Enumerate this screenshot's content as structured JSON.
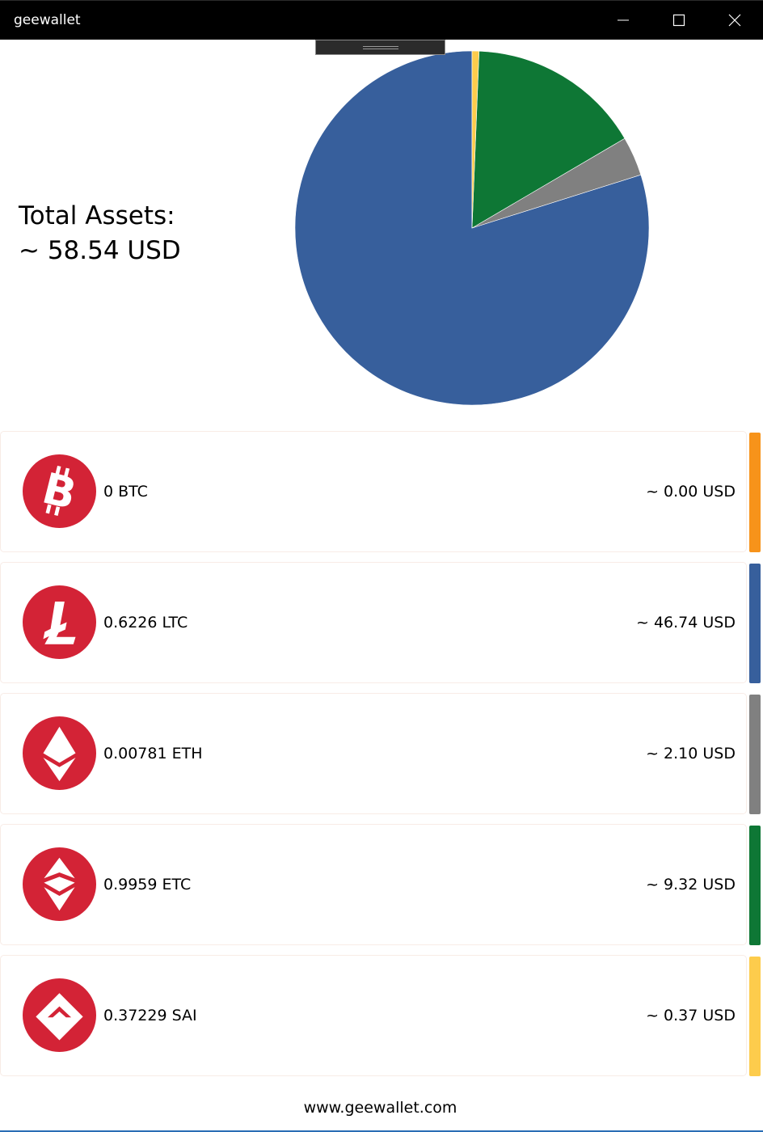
{
  "window": {
    "title": "geewallet",
    "controls": {
      "minimize_icon": "minimize-icon",
      "maximize_icon": "maximize-icon",
      "close_icon": "close-icon"
    }
  },
  "summary": {
    "label": "Total Assets:",
    "value": "~ 58.54 USD"
  },
  "chart_data": {
    "type": "pie",
    "slices": [
      {
        "name": "LTC",
        "value": 46.74,
        "color": "#375f9c"
      },
      {
        "name": "ETH",
        "value": 2.1,
        "color": "#808080"
      },
      {
        "name": "ETC",
        "value": 9.32,
        "color": "#0e7735"
      },
      {
        "name": "SAI",
        "value": 0.37,
        "color": "#fdcc4c"
      }
    ]
  },
  "accounts": [
    {
      "currency": "BTC",
      "amount": "0 BTC",
      "value": "~ 0.00 USD",
      "color": "#f7931a",
      "icon": "bitcoin-icon"
    },
    {
      "currency": "LTC",
      "amount": "0.6226 LTC",
      "value": "~ 46.74 USD",
      "color": "#375f9c",
      "icon": "litecoin-icon"
    },
    {
      "currency": "ETH",
      "amount": "0.00781 ETH",
      "value": "~ 2.10 USD",
      "color": "#808080",
      "icon": "ethereum-icon"
    },
    {
      "currency": "ETC",
      "amount": "0.9959 ETC",
      "value": "~ 9.32 USD",
      "color": "#0e7735",
      "icon": "ethereum-classic-icon"
    },
    {
      "currency": "SAI",
      "amount": "0.37229 SAI",
      "value": "~ 0.37 USD",
      "color": "#fdcc4c",
      "icon": "sai-icon"
    }
  ],
  "footer": {
    "link": "www.geewallet.com"
  },
  "theme": {
    "logo_red": "#d32336",
    "titlebar": "#000000"
  }
}
